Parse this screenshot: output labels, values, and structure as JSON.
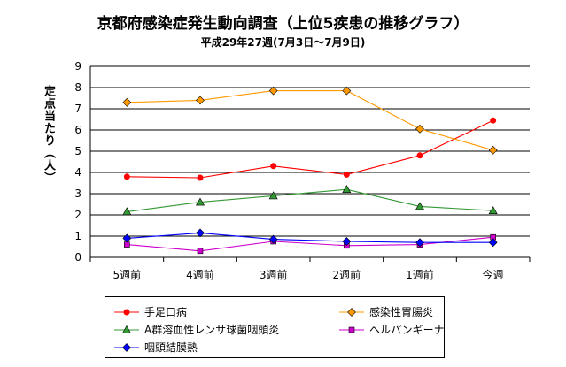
{
  "chart_data": {
    "type": "line",
    "title": "京都府感染症発生動向調査（上位5疾患の推移グラフ）",
    "subtitle": "平成29年27週(7月3日～7月9日)",
    "ylabel": "定点当たり（人）",
    "xlabel": "",
    "ylim": [
      0,
      9
    ],
    "yticks": [
      "0",
      "1",
      "2",
      "3",
      "4",
      "5",
      "6",
      "7",
      "8",
      "9"
    ],
    "categories": [
      "5週前",
      "4週前",
      "3週前",
      "2週前",
      "1週前",
      "今週"
    ],
    "grid": true,
    "legend_position": "bottom",
    "series": [
      {
        "name": "手足口病",
        "color": "#ff0000",
        "marker": "circle",
        "values": [
          3.8,
          3.75,
          4.3,
          3.9,
          4.8,
          6.45
        ]
      },
      {
        "name": "感染性胃腸炎",
        "color": "#ff9900",
        "marker": "diamond",
        "values": [
          7.3,
          7.4,
          7.85,
          7.85,
          6.05,
          5.05
        ]
      },
      {
        "name": "A群溶血性レンサ球菌咽頭炎",
        "color": "#339933",
        "marker": "triangle",
        "values": [
          2.15,
          2.6,
          2.9,
          3.2,
          2.4,
          2.2
        ]
      },
      {
        "name": "ヘルパンギーナ",
        "color": "#cc00cc",
        "marker": "square",
        "values": [
          0.6,
          0.3,
          0.75,
          0.55,
          0.6,
          0.95
        ]
      },
      {
        "name": "咽頭結膜熱",
        "color": "#0000ff",
        "marker": "diamond",
        "values": [
          0.9,
          1.15,
          0.85,
          0.75,
          0.7,
          0.7
        ]
      }
    ]
  }
}
